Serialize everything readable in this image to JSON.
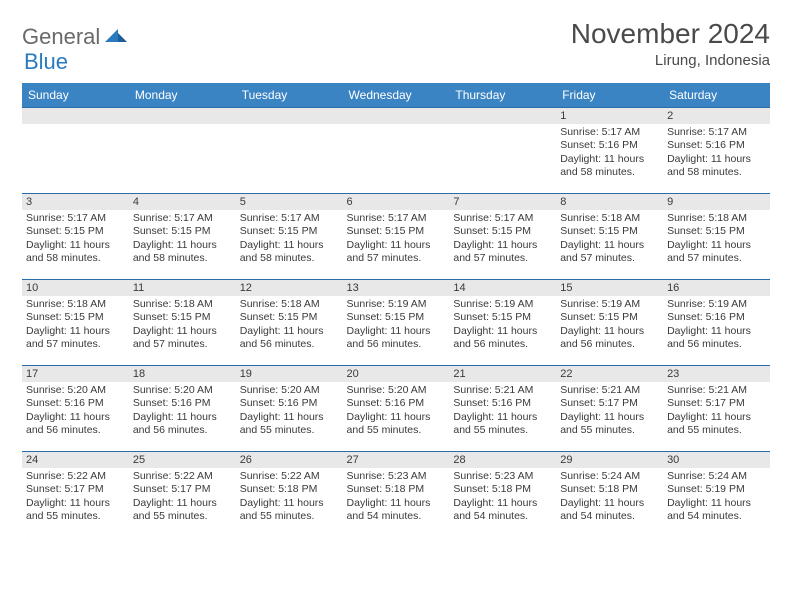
{
  "logo": {
    "general": "General",
    "blue": "Blue"
  },
  "title": "November 2024",
  "location": "Lirung, Indonesia",
  "colors": {
    "header_bg": "#3b84c4",
    "header_text": "#ffffff",
    "band_bg": "#e8e8e8",
    "border": "#2a6ca8",
    "text": "#3a3a3a",
    "logo_gray": "#6a6a6a",
    "logo_blue": "#2a7abf"
  },
  "day_headers": [
    "Sunday",
    "Monday",
    "Tuesday",
    "Wednesday",
    "Thursday",
    "Friday",
    "Saturday"
  ],
  "weeks": [
    [
      {
        "blank": true
      },
      {
        "blank": true
      },
      {
        "blank": true
      },
      {
        "blank": true
      },
      {
        "blank": true
      },
      {
        "n": "1",
        "sr": "Sunrise: 5:17 AM",
        "ss": "Sunset: 5:16 PM",
        "d1": "Daylight: 11 hours",
        "d2": "and 58 minutes."
      },
      {
        "n": "2",
        "sr": "Sunrise: 5:17 AM",
        "ss": "Sunset: 5:16 PM",
        "d1": "Daylight: 11 hours",
        "d2": "and 58 minutes."
      }
    ],
    [
      {
        "n": "3",
        "sr": "Sunrise: 5:17 AM",
        "ss": "Sunset: 5:15 PM",
        "d1": "Daylight: 11 hours",
        "d2": "and 58 minutes."
      },
      {
        "n": "4",
        "sr": "Sunrise: 5:17 AM",
        "ss": "Sunset: 5:15 PM",
        "d1": "Daylight: 11 hours",
        "d2": "and 58 minutes."
      },
      {
        "n": "5",
        "sr": "Sunrise: 5:17 AM",
        "ss": "Sunset: 5:15 PM",
        "d1": "Daylight: 11 hours",
        "d2": "and 58 minutes."
      },
      {
        "n": "6",
        "sr": "Sunrise: 5:17 AM",
        "ss": "Sunset: 5:15 PM",
        "d1": "Daylight: 11 hours",
        "d2": "and 57 minutes."
      },
      {
        "n": "7",
        "sr": "Sunrise: 5:17 AM",
        "ss": "Sunset: 5:15 PM",
        "d1": "Daylight: 11 hours",
        "d2": "and 57 minutes."
      },
      {
        "n": "8",
        "sr": "Sunrise: 5:18 AM",
        "ss": "Sunset: 5:15 PM",
        "d1": "Daylight: 11 hours",
        "d2": "and 57 minutes."
      },
      {
        "n": "9",
        "sr": "Sunrise: 5:18 AM",
        "ss": "Sunset: 5:15 PM",
        "d1": "Daylight: 11 hours",
        "d2": "and 57 minutes."
      }
    ],
    [
      {
        "n": "10",
        "sr": "Sunrise: 5:18 AM",
        "ss": "Sunset: 5:15 PM",
        "d1": "Daylight: 11 hours",
        "d2": "and 57 minutes."
      },
      {
        "n": "11",
        "sr": "Sunrise: 5:18 AM",
        "ss": "Sunset: 5:15 PM",
        "d1": "Daylight: 11 hours",
        "d2": "and 57 minutes."
      },
      {
        "n": "12",
        "sr": "Sunrise: 5:18 AM",
        "ss": "Sunset: 5:15 PM",
        "d1": "Daylight: 11 hours",
        "d2": "and 56 minutes."
      },
      {
        "n": "13",
        "sr": "Sunrise: 5:19 AM",
        "ss": "Sunset: 5:15 PM",
        "d1": "Daylight: 11 hours",
        "d2": "and 56 minutes."
      },
      {
        "n": "14",
        "sr": "Sunrise: 5:19 AM",
        "ss": "Sunset: 5:15 PM",
        "d1": "Daylight: 11 hours",
        "d2": "and 56 minutes."
      },
      {
        "n": "15",
        "sr": "Sunrise: 5:19 AM",
        "ss": "Sunset: 5:15 PM",
        "d1": "Daylight: 11 hours",
        "d2": "and 56 minutes."
      },
      {
        "n": "16",
        "sr": "Sunrise: 5:19 AM",
        "ss": "Sunset: 5:16 PM",
        "d1": "Daylight: 11 hours",
        "d2": "and 56 minutes."
      }
    ],
    [
      {
        "n": "17",
        "sr": "Sunrise: 5:20 AM",
        "ss": "Sunset: 5:16 PM",
        "d1": "Daylight: 11 hours",
        "d2": "and 56 minutes."
      },
      {
        "n": "18",
        "sr": "Sunrise: 5:20 AM",
        "ss": "Sunset: 5:16 PM",
        "d1": "Daylight: 11 hours",
        "d2": "and 56 minutes."
      },
      {
        "n": "19",
        "sr": "Sunrise: 5:20 AM",
        "ss": "Sunset: 5:16 PM",
        "d1": "Daylight: 11 hours",
        "d2": "and 55 minutes."
      },
      {
        "n": "20",
        "sr": "Sunrise: 5:20 AM",
        "ss": "Sunset: 5:16 PM",
        "d1": "Daylight: 11 hours",
        "d2": "and 55 minutes."
      },
      {
        "n": "21",
        "sr": "Sunrise: 5:21 AM",
        "ss": "Sunset: 5:16 PM",
        "d1": "Daylight: 11 hours",
        "d2": "and 55 minutes."
      },
      {
        "n": "22",
        "sr": "Sunrise: 5:21 AM",
        "ss": "Sunset: 5:17 PM",
        "d1": "Daylight: 11 hours",
        "d2": "and 55 minutes."
      },
      {
        "n": "23",
        "sr": "Sunrise: 5:21 AM",
        "ss": "Sunset: 5:17 PM",
        "d1": "Daylight: 11 hours",
        "d2": "and 55 minutes."
      }
    ],
    [
      {
        "n": "24",
        "sr": "Sunrise: 5:22 AM",
        "ss": "Sunset: 5:17 PM",
        "d1": "Daylight: 11 hours",
        "d2": "and 55 minutes."
      },
      {
        "n": "25",
        "sr": "Sunrise: 5:22 AM",
        "ss": "Sunset: 5:17 PM",
        "d1": "Daylight: 11 hours",
        "d2": "and 55 minutes."
      },
      {
        "n": "26",
        "sr": "Sunrise: 5:22 AM",
        "ss": "Sunset: 5:18 PM",
        "d1": "Daylight: 11 hours",
        "d2": "and 55 minutes."
      },
      {
        "n": "27",
        "sr": "Sunrise: 5:23 AM",
        "ss": "Sunset: 5:18 PM",
        "d1": "Daylight: 11 hours",
        "d2": "and 54 minutes."
      },
      {
        "n": "28",
        "sr": "Sunrise: 5:23 AM",
        "ss": "Sunset: 5:18 PM",
        "d1": "Daylight: 11 hours",
        "d2": "and 54 minutes."
      },
      {
        "n": "29",
        "sr": "Sunrise: 5:24 AM",
        "ss": "Sunset: 5:18 PM",
        "d1": "Daylight: 11 hours",
        "d2": "and 54 minutes."
      },
      {
        "n": "30",
        "sr": "Sunrise: 5:24 AM",
        "ss": "Sunset: 5:19 PM",
        "d1": "Daylight: 11 hours",
        "d2": "and 54 minutes."
      }
    ]
  ]
}
